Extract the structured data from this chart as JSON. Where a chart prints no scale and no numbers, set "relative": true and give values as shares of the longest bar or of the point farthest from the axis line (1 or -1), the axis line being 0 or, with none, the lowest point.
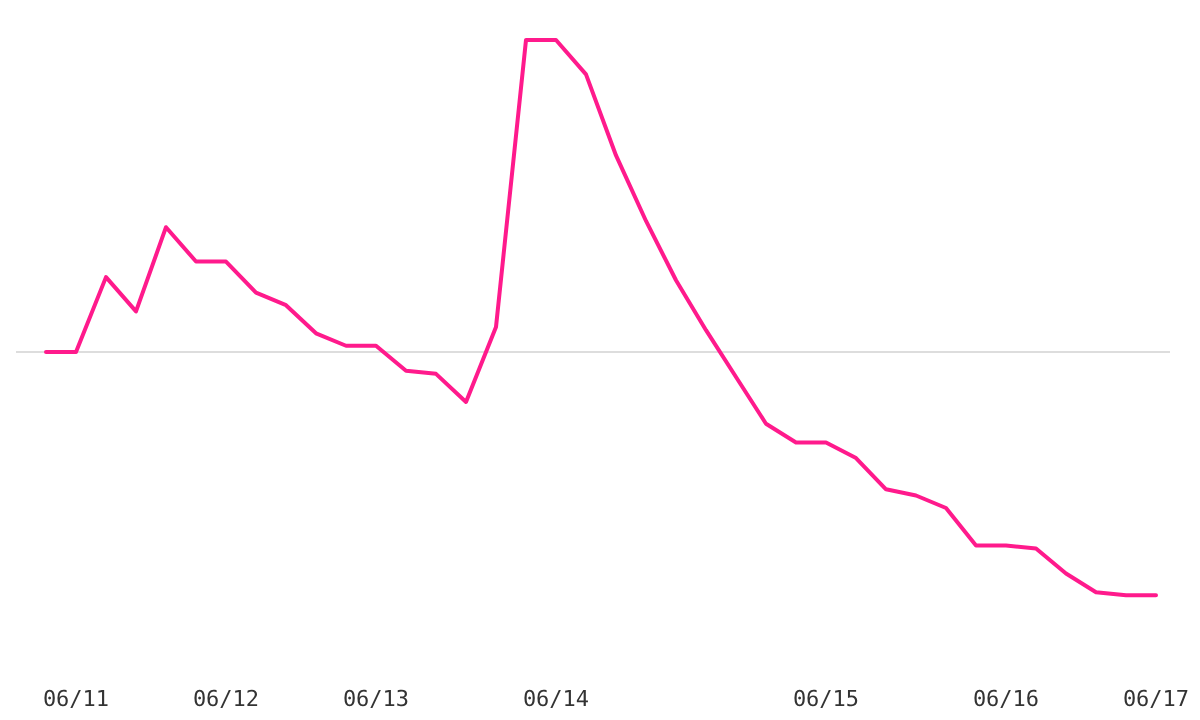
{
  "chart_data": {
    "type": "line",
    "relative": true,
    "categories": [
      null,
      "06/11",
      null,
      null,
      null,
      null,
      "06/12",
      null,
      null,
      null,
      null,
      "06/13",
      null,
      null,
      null,
      null,
      null,
      "06/14",
      null,
      null,
      null,
      null,
      null,
      null,
      null,
      null,
      "06/15",
      null,
      null,
      null,
      null,
      null,
      "06/16",
      null,
      null,
      null,
      null,
      "06/17"
    ],
    "series": [
      {
        "color": "#ff1a8c",
        "values": [
          0,
          0,
          0.24,
          0.13,
          0.4,
          0.29,
          0.29,
          0.19,
          0.15,
          0.06,
          0.02,
          0.02,
          -0.06,
          -0.07,
          -0.16,
          0.08,
          1,
          1,
          0.89,
          0.63,
          0.42,
          0.23,
          0.07,
          -0.08,
          -0.23,
          -0.29,
          -0.29,
          -0.34,
          -0.44,
          -0.46,
          -0.5,
          -0.62,
          -0.62,
          -0.63,
          -0.71,
          -0.77,
          -0.78,
          -0.78
        ]
      }
    ]
  }
}
